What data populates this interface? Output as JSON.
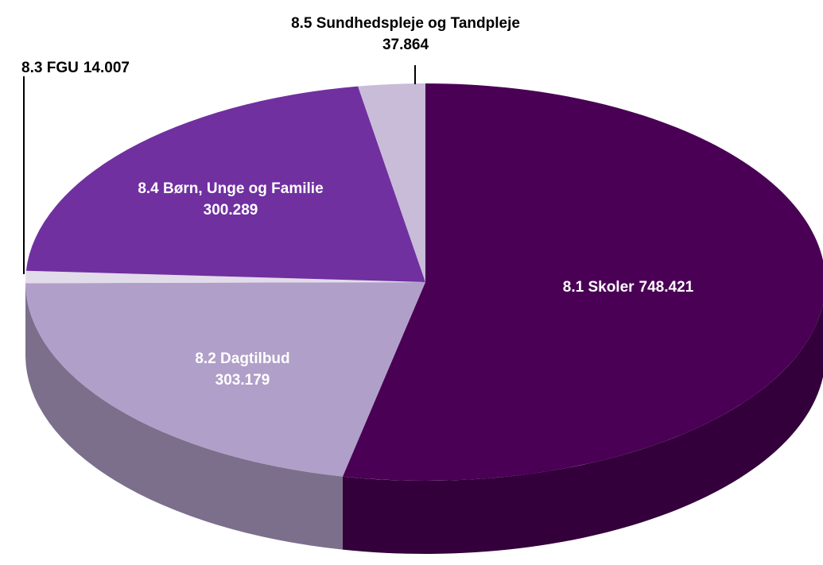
{
  "chart_data": {
    "type": "pie3d",
    "categories": [
      "8.1 Skoler",
      "8.2 Dagtilbud",
      "8.3 FGU",
      "8.4 Børn, Unge og Familie",
      "8.5 Sundhedspleje og Tandpleje"
    ],
    "values": [
      748421,
      303179,
      14007,
      300289,
      37864
    ],
    "value_labels": [
      "748.421",
      "303.179",
      "14.007",
      "300.289",
      "37.864"
    ],
    "colors": [
      "#4a0055",
      "#b09fc8",
      "#e2dbea",
      "#7030a0",
      "#c8bcd9"
    ]
  }
}
